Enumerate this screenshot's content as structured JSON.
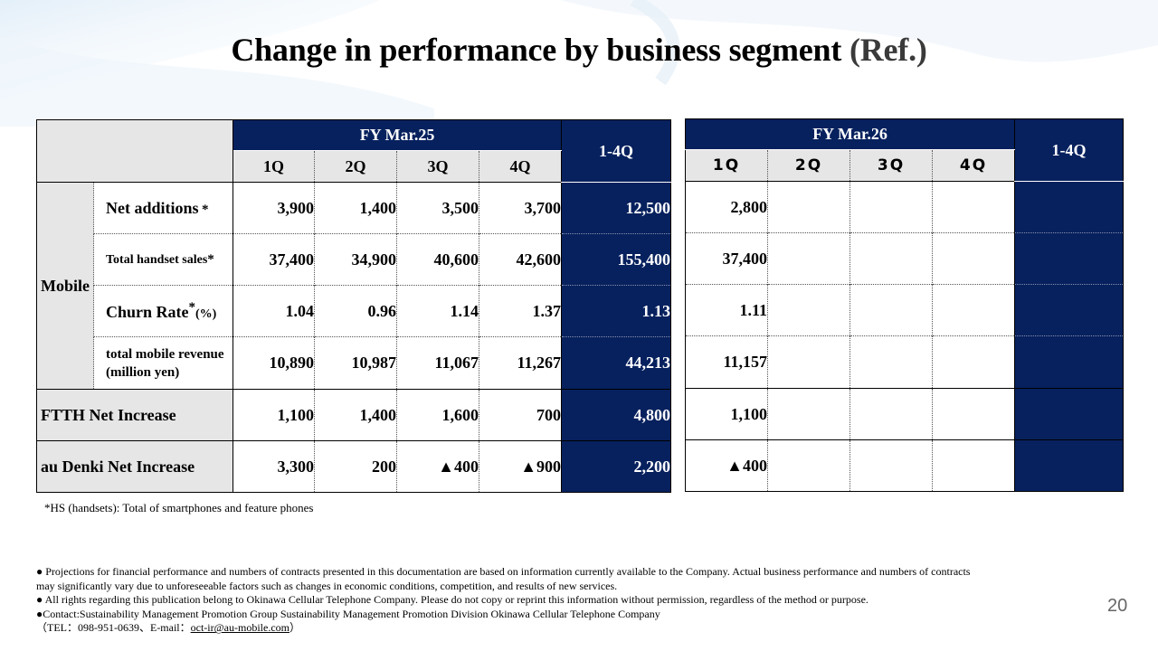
{
  "title": {
    "main": "Change in performance by business segment ",
    "ref": "(Ref.)"
  },
  "fy25": {
    "label": "FY Mar.25",
    "quarters": [
      "1Q",
      "2Q",
      "3Q",
      "4Q"
    ],
    "total_label": "1-4Q"
  },
  "fy26": {
    "label": "FY Mar.26",
    "quarters": [
      "1Q",
      "2Q",
      "3Q",
      "4Q"
    ],
    "total_label": "1-4Q"
  },
  "segments": {
    "mobile": "Mobile",
    "ftth": "FTTH Net Increase",
    "denki": "au Denki Net Increase"
  },
  "rows": {
    "net_additions": {
      "label": "Net additions",
      "mark": "*",
      "fy25": [
        "3,900",
        "1,400",
        "3,500",
        "3,700"
      ],
      "fy25_total": "12,500",
      "fy26": [
        "2,800",
        "",
        "",
        ""
      ]
    },
    "handset_sales": {
      "label": "Total handset sales",
      "mark": "*",
      "fy25": [
        "37,400",
        "34,900",
        "40,600",
        "42,600"
      ],
      "fy25_total": "155,400",
      "fy26": [
        "37,400",
        "",
        "",
        ""
      ]
    },
    "churn": {
      "label": "Churn Rate",
      "mark": "*",
      "unit": "(%)",
      "fy25": [
        "1.04",
        "0.96",
        "1.14",
        "1.37"
      ],
      "fy25_total": "1.13",
      "fy26": [
        "1.11",
        "",
        "",
        ""
      ]
    },
    "revenue": {
      "label_line1": "total mobile revenue",
      "label_line2": "(million yen)",
      "fy25": [
        "10,890",
        "10,987",
        "11,067",
        "11,267"
      ],
      "fy25_total": "44,213",
      "fy26": [
        "11,157",
        "",
        "",
        ""
      ]
    },
    "ftth": {
      "fy25": [
        "1,100",
        "1,400",
        "1,600",
        "700"
      ],
      "fy25_total": "4,800",
      "fy26": [
        "1,100",
        "",
        "",
        ""
      ]
    },
    "denki": {
      "fy25": [
        "3,300",
        "200",
        "▲400",
        "▲900"
      ],
      "fy25_total": "2,200",
      "fy26": [
        "▲400",
        "",
        "",
        ""
      ]
    }
  },
  "footnote": "*HS (handsets): Total of smartphones and feature phones",
  "disclaimer": {
    "line1": "● Projections for financial performance and numbers of contracts presented in this documentation are based on information currently available to the Company. Actual business performance and numbers of contracts",
    "line2": "may significantly vary due to unforeseeable factors such as changes in economic conditions, competition, and results of new services.",
    "line3": "● All rights regarding this publication belong to Okinawa Cellular Telephone Company. Please do not copy or reprint this information without permission, regardless of the method or purpose.",
    "line4": "●Contact:Sustainability Management Promotion Group Sustainability Management Promotion Division Okinawa Cellular Telephone Company",
    "line5_pre": "（TEL：098-951-0639、E-mail：",
    "email": "oct-ir@au-mobile.com",
    "line5_post": "）"
  },
  "page_number": "20",
  "colors": {
    "navy": "#07215e",
    "gray": "#e6e6e6"
  }
}
